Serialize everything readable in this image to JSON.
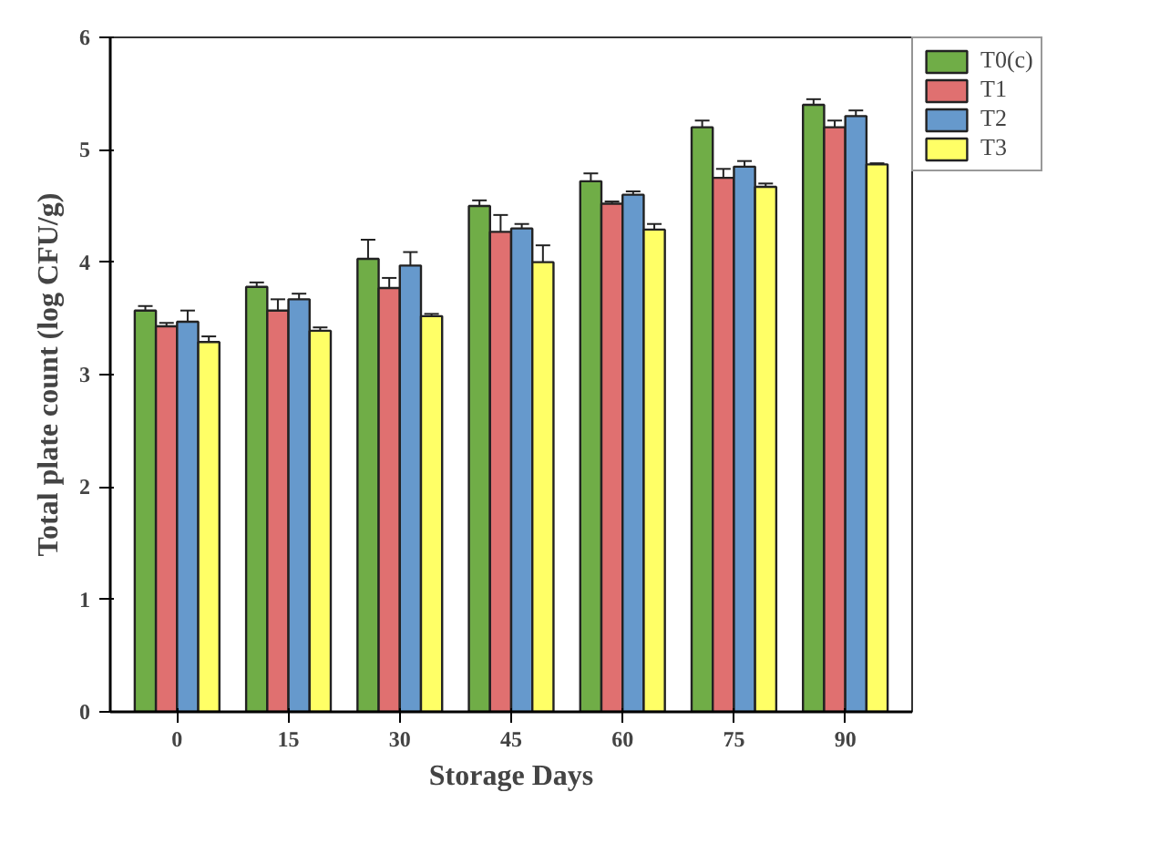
{
  "chart_data": {
    "type": "bar",
    "xlabel": "Storage Days",
    "ylabel": "Total plate count (log CFU/g)",
    "categories": [
      "0",
      "15",
      "30",
      "45",
      "60",
      "75",
      "90"
    ],
    "series": [
      {
        "name": "T0(c)",
        "color": "#70ad47",
        "values": [
          3.57,
          3.78,
          4.03,
          4.5,
          4.72,
          5.2,
          5.4
        ],
        "errors": [
          0.04,
          0.04,
          0.17,
          0.05,
          0.07,
          0.06,
          0.05
        ]
      },
      {
        "name": "T1",
        "color": "#e07070",
        "values": [
          3.43,
          3.57,
          3.77,
          4.27,
          4.52,
          4.75,
          5.2
        ],
        "errors": [
          0.03,
          0.1,
          0.09,
          0.15,
          0.02,
          0.08,
          0.06
        ]
      },
      {
        "name": "T2",
        "color": "#6699cc",
        "values": [
          3.47,
          3.67,
          3.97,
          4.3,
          4.6,
          4.85,
          5.3
        ],
        "errors": [
          0.1,
          0.05,
          0.12,
          0.04,
          0.03,
          0.05,
          0.05
        ]
      },
      {
        "name": "T3",
        "color": "#ffff66",
        "values": [
          3.29,
          3.39,
          3.52,
          4.0,
          4.29,
          4.67,
          4.87
        ],
        "errors": [
          0.05,
          0.03,
          0.02,
          0.15,
          0.05,
          0.03,
          0.01
        ]
      }
    ],
    "ylim": [
      0,
      6
    ],
    "yticks": [
      0,
      1,
      2,
      3,
      4,
      5,
      6
    ],
    "grid": false,
    "legend": "right"
  }
}
